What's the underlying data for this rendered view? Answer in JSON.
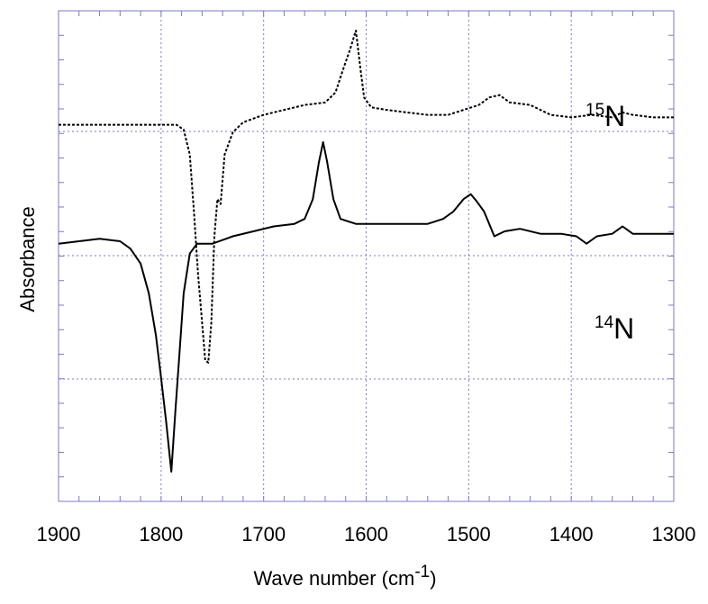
{
  "chart_data": {
    "type": "line",
    "title": "",
    "xlabel": "Wave number (cm",
    "xlabel_sup": "-1",
    "xlabel_close": ")",
    "ylabel": "Absorbance",
    "xlim": [
      1900,
      1300
    ],
    "x_reversed": true,
    "ylim": [
      -1,
      1
    ],
    "yticks_shown": false,
    "x_ticks": [
      1900,
      1800,
      1700,
      1600,
      1500,
      1400,
      1300
    ],
    "grid": true,
    "grid_color": "#7a7acc",
    "frame_color": "#7a7acc",
    "series": [
      {
        "label_sup": "15",
        "label_base": "N",
        "style": "dotted",
        "color": "#000000",
        "points": [
          [
            1900,
            0.4
          ],
          [
            1880,
            0.4
          ],
          [
            1860,
            0.4
          ],
          [
            1840,
            0.4
          ],
          [
            1820,
            0.4
          ],
          [
            1800,
            0.4
          ],
          [
            1785,
            0.4
          ],
          [
            1778,
            0.38
          ],
          [
            1772,
            0.28
          ],
          [
            1768,
            0.05
          ],
          [
            1764,
            -0.2
          ],
          [
            1760,
            -0.4
          ],
          [
            1757,
            -0.55
          ],
          [
            1754,
            -0.56
          ],
          [
            1751,
            -0.4
          ],
          [
            1748,
            -0.05
          ],
          [
            1745,
            0.1
          ],
          [
            1742,
            0.08
          ],
          [
            1738,
            0.28
          ],
          [
            1730,
            0.37
          ],
          [
            1720,
            0.41
          ],
          [
            1700,
            0.44
          ],
          [
            1680,
            0.46
          ],
          [
            1660,
            0.48
          ],
          [
            1640,
            0.49
          ],
          [
            1630,
            0.53
          ],
          [
            1622,
            0.63
          ],
          [
            1616,
            0.7
          ],
          [
            1610,
            0.78
          ],
          [
            1606,
            0.64
          ],
          [
            1602,
            0.51
          ],
          [
            1595,
            0.47
          ],
          [
            1580,
            0.46
          ],
          [
            1560,
            0.45
          ],
          [
            1540,
            0.44
          ],
          [
            1520,
            0.44
          ],
          [
            1505,
            0.46
          ],
          [
            1490,
            0.48
          ],
          [
            1480,
            0.51
          ],
          [
            1470,
            0.52
          ],
          [
            1460,
            0.49
          ],
          [
            1440,
            0.48
          ],
          [
            1420,
            0.44
          ],
          [
            1400,
            0.43
          ],
          [
            1380,
            0.44
          ],
          [
            1360,
            0.43
          ],
          [
            1350,
            0.45
          ],
          [
            1340,
            0.44
          ],
          [
            1320,
            0.43
          ],
          [
            1300,
            0.43
          ]
        ]
      },
      {
        "label_sup": "14",
        "label_base": "N",
        "style": "solid",
        "color": "#000000",
        "points": [
          [
            1900,
            -0.08
          ],
          [
            1880,
            -0.07
          ],
          [
            1860,
            -0.06
          ],
          [
            1840,
            -0.07
          ],
          [
            1830,
            -0.1
          ],
          [
            1820,
            -0.16
          ],
          [
            1812,
            -0.28
          ],
          [
            1805,
            -0.45
          ],
          [
            1800,
            -0.62
          ],
          [
            1795,
            -0.8
          ],
          [
            1790,
            -1.0
          ],
          [
            1786,
            -0.75
          ],
          [
            1782,
            -0.52
          ],
          [
            1778,
            -0.28
          ],
          [
            1772,
            -0.12
          ],
          [
            1765,
            -0.08
          ],
          [
            1750,
            -0.08
          ],
          [
            1730,
            -0.05
          ],
          [
            1710,
            -0.03
          ],
          [
            1690,
            -0.01
          ],
          [
            1670,
            0.0
          ],
          [
            1660,
            0.02
          ],
          [
            1652,
            0.1
          ],
          [
            1646,
            0.25
          ],
          [
            1642,
            0.33
          ],
          [
            1638,
            0.25
          ],
          [
            1632,
            0.1
          ],
          [
            1625,
            0.02
          ],
          [
            1610,
            0.0
          ],
          [
            1590,
            0.0
          ],
          [
            1560,
            0.0
          ],
          [
            1540,
            0.0
          ],
          [
            1525,
            0.02
          ],
          [
            1515,
            0.05
          ],
          [
            1505,
            0.1
          ],
          [
            1498,
            0.12
          ],
          [
            1492,
            0.09
          ],
          [
            1485,
            0.05
          ],
          [
            1475,
            -0.05
          ],
          [
            1465,
            -0.03
          ],
          [
            1450,
            -0.02
          ],
          [
            1430,
            -0.04
          ],
          [
            1410,
            -0.04
          ],
          [
            1395,
            -0.05
          ],
          [
            1385,
            -0.08
          ],
          [
            1375,
            -0.05
          ],
          [
            1360,
            -0.04
          ],
          [
            1350,
            -0.01
          ],
          [
            1340,
            -0.04
          ],
          [
            1320,
            -0.04
          ],
          [
            1300,
            -0.04
          ]
        ]
      }
    ]
  }
}
